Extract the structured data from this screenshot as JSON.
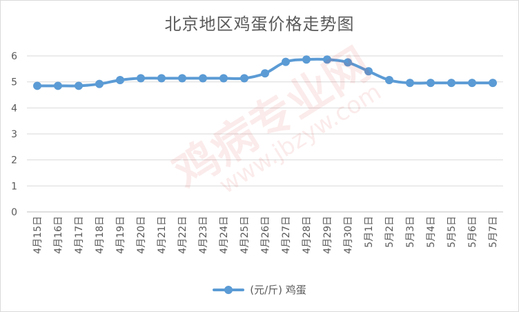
{
  "chart_data": {
    "type": "line",
    "title": "北京地区鸡蛋价格走势图",
    "categories": [
      "4月15日",
      "4月16日",
      "4月17日",
      "4月18日",
      "4月19日",
      "4月20日",
      "4月21日",
      "4月22日",
      "4月23日",
      "4月24日",
      "4月25日",
      "4月26日",
      "4月27日",
      "4月28日",
      "4月29日",
      "4月30日",
      "5月1日",
      "5月2日",
      "5月3日",
      "5月4日",
      "5月5日",
      "5月6日",
      "5月7日"
    ],
    "series": [
      {
        "name": "(元/斤) 鸡蛋",
        "color": "#5b9bd5",
        "values": [
          4.85,
          4.85,
          4.85,
          4.92,
          5.07,
          5.14,
          5.14,
          5.14,
          5.14,
          5.14,
          5.14,
          5.33,
          5.77,
          5.86,
          5.86,
          5.75,
          5.41,
          5.07,
          4.96,
          4.96,
          4.96,
          4.96,
          4.96
        ]
      }
    ],
    "ylim": [
      0,
      6
    ],
    "yticks": [
      "0",
      "1",
      "2",
      "3",
      "4",
      "5",
      "6"
    ],
    "grid": true,
    "legend": "bottom"
  },
  "watermark": {
    "main": "鸡病专业网",
    "url": "www.jbzyw.com"
  }
}
